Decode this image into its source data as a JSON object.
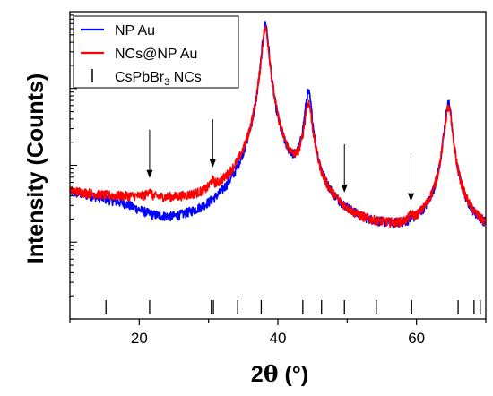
{
  "chart_data": {
    "type": "line",
    "xlabel_main": "2",
    "xlabel_theta": "θ",
    "xlabel_unit": " (°)",
    "ylabel": "Intensity (Counts)",
    "xlim": [
      10,
      70
    ],
    "ylim": [
      1,
      10000
    ],
    "y_scale": "log",
    "x_ticks": [
      20,
      40,
      60
    ],
    "x_tick_labels": [
      "20",
      "40",
      "60"
    ],
    "grid": false,
    "legend_position": "top-left",
    "legend": [
      {
        "text": "NP Au",
        "type": "line",
        "color": "#0000ff"
      },
      {
        "text": "NCs@NP Au",
        "type": "line",
        "color": "#ff0000"
      },
      {
        "text_main": "CsPbBr",
        "text_sub": "3",
        "text_tail": " NCs",
        "type": "marker",
        "color": "#000000"
      }
    ],
    "series": [
      {
        "name": "NP Au",
        "color": "#0000ff",
        "background": [
          [
            10,
            43
          ],
          [
            14,
            36
          ],
          [
            18,
            28
          ],
          [
            22,
            17
          ],
          [
            25,
            13
          ],
          [
            28,
            12
          ],
          [
            30,
            11
          ],
          [
            32,
            10
          ],
          [
            34,
            9
          ],
          [
            36,
            14
          ],
          [
            45,
            14
          ],
          [
            48,
            12
          ],
          [
            50,
            11
          ],
          [
            52,
            10
          ],
          [
            54,
            10
          ],
          [
            56,
            10
          ],
          [
            58,
            10
          ],
          [
            60,
            11
          ],
          [
            62,
            13
          ],
          [
            66,
            13
          ],
          [
            68,
            12
          ],
          [
            70,
            11
          ]
        ],
        "peaks": [
          {
            "x": 38.2,
            "height": 7000,
            "width": 0.45
          },
          {
            "x": 44.4,
            "height": 840,
            "width": 0.5
          },
          {
            "x": 64.6,
            "height": 640,
            "width": 0.5
          }
        ]
      },
      {
        "name": "NCs@NP Au",
        "color": "#ff0000",
        "background": [
          [
            10,
            45
          ],
          [
            15,
            38
          ],
          [
            20,
            35
          ],
          [
            22,
            33
          ],
          [
            25,
            30
          ],
          [
            28,
            28
          ],
          [
            30,
            27
          ],
          [
            32,
            26
          ],
          [
            34,
            24
          ],
          [
            36,
            16
          ],
          [
            45,
            16
          ],
          [
            48,
            13
          ],
          [
            50,
            11
          ],
          [
            52,
            10
          ],
          [
            54,
            10
          ],
          [
            56,
            10
          ],
          [
            58,
            10
          ],
          [
            60,
            11
          ],
          [
            62,
            13
          ],
          [
            66,
            13
          ],
          [
            68,
            12
          ],
          [
            70,
            11
          ]
        ],
        "peaks": [
          {
            "x": 38.2,
            "height": 6000,
            "width": 0.5
          },
          {
            "x": 44.4,
            "height": 600,
            "width": 0.55
          },
          {
            "x": 64.6,
            "height": 550,
            "width": 0.55
          },
          {
            "x": 21.4,
            "height": 9,
            "width": 0.25
          },
          {
            "x": 30.5,
            "height": 12,
            "width": 0.3
          },
          {
            "x": 59.2,
            "height": 3,
            "width": 0.3
          }
        ]
      }
    ],
    "reference_ticks": [
      15.2,
      21.5,
      30.4,
      30.7,
      34.2,
      37.6,
      43.6,
      46.3,
      49.6,
      54.2,
      59.3,
      66.0,
      68.3,
      69.2
    ],
    "arrows": [
      21.5,
      30.6,
      49.6,
      59.2
    ]
  }
}
